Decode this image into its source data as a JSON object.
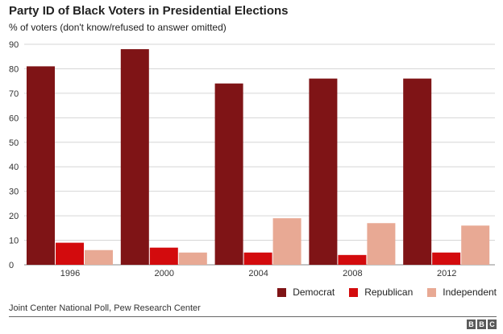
{
  "header": {
    "title": "Party ID of Black Voters in Presidential Elections",
    "subtitle": "% of voters (don't know/refused to answer omitted)"
  },
  "footer": {
    "source": "Joint Center National Poll, Pew Research Center",
    "logo": [
      "B",
      "B",
      "C"
    ]
  },
  "chart_data": {
    "type": "bar",
    "title": "Party ID of Black Voters in Presidential Elections",
    "subtitle": "% of voters (don't know/refused to answer omitted)",
    "xlabel": "",
    "ylabel": "",
    "categories": [
      "1996",
      "2000",
      "2004",
      "2008",
      "2012"
    ],
    "ylim": [
      0,
      90
    ],
    "yticks": [
      0,
      10,
      20,
      30,
      40,
      50,
      60,
      70,
      80,
      90
    ],
    "grid": true,
    "legend_position": "bottom-right",
    "series": [
      {
        "name": "Democrat",
        "color": "#7f1416",
        "values": [
          81,
          88,
          74,
          76,
          76
        ]
      },
      {
        "name": "Republican",
        "color": "#d30b0d",
        "values": [
          9,
          7,
          5,
          4,
          5
        ]
      },
      {
        "name": "Independent",
        "color": "#e8a994",
        "values": [
          6,
          5,
          19,
          17,
          16
        ]
      }
    ]
  }
}
